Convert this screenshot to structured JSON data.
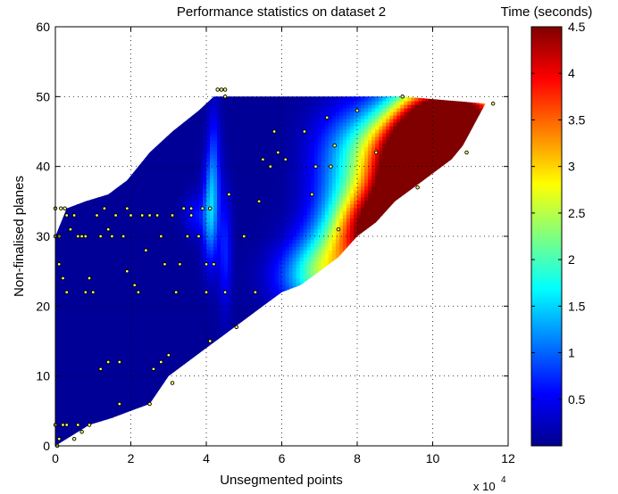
{
  "chart_data": {
    "type": "heatmap",
    "title": "Performance statistics on dataset 2",
    "xlabel": "Unsegmented points",
    "ylabel": "Non-finalised planes",
    "x_multiplier_label": "x 10",
    "x_multiplier_exponent": "4",
    "xlim": [
      0,
      120000
    ],
    "ylim": [
      0,
      60
    ],
    "x_ticks": [
      0,
      20000,
      40000,
      60000,
      80000,
      100000,
      120000
    ],
    "x_tick_labels": [
      "0",
      "2",
      "4",
      "6",
      "8",
      "10",
      "12"
    ],
    "y_ticks": [
      0,
      10,
      20,
      30,
      40,
      50,
      60
    ],
    "y_tick_labels": [
      "0",
      "10",
      "20",
      "30",
      "40",
      "50",
      "60"
    ],
    "grid": true,
    "colormap": "jet",
    "colorbar": {
      "label": "Time (seconds)",
      "range": [
        0.0,
        4.5
      ],
      "ticks": [
        0.5,
        1,
        1.5,
        2,
        2.5,
        3,
        3.5,
        4,
        4.5
      ],
      "tick_labels": [
        "0.5",
        "1",
        "1.5",
        "2",
        "2.5",
        "3",
        "3.5",
        "4",
        "4.5"
      ]
    },
    "domain_edges": {
      "upper": [
        [
          0,
          30
        ],
        [
          3000,
          34
        ],
        [
          8000,
          35
        ],
        [
          14000,
          36
        ],
        [
          19000,
          38
        ],
        [
          25000,
          42
        ],
        [
          31000,
          45
        ],
        [
          38000,
          48
        ],
        [
          42000,
          50
        ],
        [
          92000,
          50
        ]
      ],
      "right": [
        [
          0,
          0
        ],
        [
          9000,
          3
        ],
        [
          15000,
          4
        ],
        [
          20000,
          5
        ],
        [
          25000,
          6
        ],
        [
          30000,
          10
        ],
        [
          35000,
          12
        ],
        [
          40000,
          14
        ],
        [
          45000,
          16
        ],
        [
          50000,
          18
        ],
        [
          55000,
          20
        ],
        [
          60000,
          22
        ],
        [
          65000,
          23
        ],
        [
          70000,
          25
        ],
        [
          75000,
          27
        ],
        [
          80000,
          30
        ],
        [
          85000,
          32
        ],
        [
          90000,
          35
        ],
        [
          95000,
          37
        ],
        [
          100000,
          39
        ],
        [
          105000,
          41
        ],
        [
          108000,
          43
        ],
        [
          110000,
          45
        ],
        [
          112000,
          47
        ],
        [
          114000,
          49
        ]
      ]
    },
    "field_peaks": [
      {
        "x": 108000,
        "y": 46,
        "value": 4.4,
        "sx": 9000,
        "sy": 4
      },
      {
        "x": 97000,
        "y": 39,
        "value": 4.3,
        "sx": 9000,
        "sy": 4
      },
      {
        "x": 90000,
        "y": 33,
        "value": 3.6,
        "sx": 8000,
        "sy": 4
      },
      {
        "x": 100000,
        "y": 46,
        "value": 3.2,
        "sx": 8000,
        "sy": 4
      },
      {
        "x": 83000,
        "y": 30,
        "value": 2.4,
        "sx": 7000,
        "sy": 4
      },
      {
        "x": 88000,
        "y": 43,
        "value": 1.8,
        "sx": 9000,
        "sy": 4
      },
      {
        "x": 74000,
        "y": 26,
        "value": 1.6,
        "sx": 7000,
        "sy": 4
      },
      {
        "x": 68000,
        "y": 24,
        "value": 1.0,
        "sx": 7000,
        "sy": 3
      },
      {
        "x": 75000,
        "y": 38,
        "value": 0.6,
        "sx": 6000,
        "sy": 6
      },
      {
        "x": 41000,
        "y": 33,
        "value": 1.1,
        "sx": 1400,
        "sy": 5
      },
      {
        "x": 42000,
        "y": 40,
        "value": 0.7,
        "sx": 1200,
        "sy": 6
      },
      {
        "x": 45000,
        "y": 28,
        "value": 0.6,
        "sx": 1200,
        "sy": 6
      },
      {
        "x": 37000,
        "y": 33,
        "value": 0.5,
        "sx": 2000,
        "sy": 2
      }
    ],
    "field_base": 0.1,
    "points": [
      [
        0,
        30
      ],
      [
        1000,
        30
      ],
      [
        0,
        34
      ],
      [
        1500,
        34
      ],
      [
        2500,
        34
      ],
      [
        0,
        3
      ],
      [
        500,
        0
      ],
      [
        1000,
        1
      ],
      [
        2000,
        3
      ],
      [
        3000,
        3
      ],
      [
        5000,
        1
      ],
      [
        6000,
        3
      ],
      [
        7000,
        2
      ],
      [
        9000,
        3
      ],
      [
        17000,
        6
      ],
      [
        25000,
        6
      ],
      [
        26000,
        11
      ],
      [
        28000,
        12
      ],
      [
        30000,
        13
      ],
      [
        31000,
        9
      ],
      [
        43000,
        51
      ],
      [
        44000,
        51
      ],
      [
        45000,
        51
      ],
      [
        45000,
        50
      ],
      [
        41000,
        34
      ],
      [
        39000,
        34
      ],
      [
        48000,
        17
      ],
      [
        41000,
        15
      ],
      [
        68000,
        36
      ],
      [
        75000,
        31
      ],
      [
        92000,
        50
      ],
      [
        109000,
        42
      ],
      [
        116000,
        49
      ],
      [
        96000,
        37
      ],
      [
        3000,
        22
      ],
      [
        3000,
        33
      ],
      [
        4000,
        31
      ],
      [
        5000,
        33
      ],
      [
        6000,
        30
      ],
      [
        7000,
        30
      ],
      [
        8000,
        30
      ],
      [
        8000,
        22
      ],
      [
        9000,
        24
      ],
      [
        10000,
        22
      ],
      [
        11000,
        33
      ],
      [
        12000,
        30
      ],
      [
        13000,
        34
      ],
      [
        14000,
        31
      ],
      [
        15000,
        30
      ],
      [
        16000,
        33
      ],
      [
        17000,
        12
      ],
      [
        18000,
        30
      ],
      [
        19000,
        34
      ],
      [
        20000,
        33
      ],
      [
        21000,
        23
      ],
      [
        22000,
        22
      ],
      [
        23000,
        33
      ],
      [
        24000,
        28
      ],
      [
        25000,
        33
      ],
      [
        27000,
        33
      ],
      [
        28000,
        30
      ],
      [
        29000,
        26
      ],
      [
        31000,
        33
      ],
      [
        32000,
        22
      ],
      [
        33000,
        26
      ],
      [
        34000,
        34
      ],
      [
        35000,
        30
      ],
      [
        36000,
        33
      ],
      [
        38000,
        30
      ],
      [
        40000,
        26
      ],
      [
        40000,
        22
      ],
      [
        42000,
        26
      ],
      [
        45000,
        22
      ],
      [
        46000,
        36
      ],
      [
        50000,
        30
      ],
      [
        53000,
        22
      ],
      [
        54000,
        35
      ],
      [
        55000,
        41
      ],
      [
        57000,
        40
      ],
      [
        58000,
        45
      ],
      [
        59000,
        42
      ],
      [
        61000,
        41
      ],
      [
        66000,
        45
      ],
      [
        69000,
        40
      ],
      [
        72000,
        47
      ],
      [
        73000,
        40
      ],
      [
        74000,
        43
      ],
      [
        80000,
        48
      ],
      [
        85000,
        42
      ],
      [
        2000,
        24
      ],
      [
        1000,
        26
      ],
      [
        12000,
        11
      ],
      [
        14000,
        12
      ],
      [
        36000,
        34
      ],
      [
        19000,
        25
      ]
    ]
  }
}
